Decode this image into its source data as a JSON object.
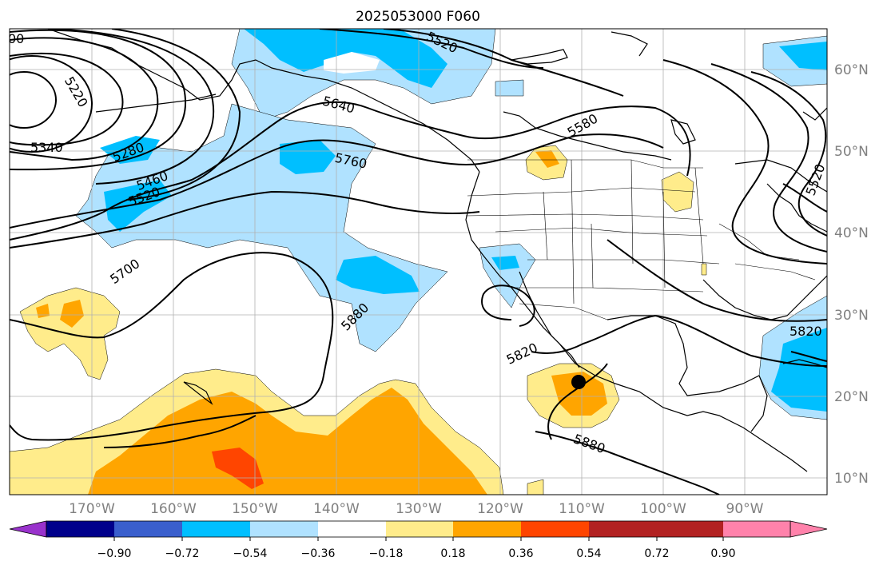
{
  "title": "2025053000 F060",
  "map": {
    "lon_range": [
      -180,
      -80
    ],
    "lat_range": [
      8,
      65
    ],
    "lat_ticks": [
      "10°N",
      "20°N",
      "30°N",
      "40°N",
      "50°N",
      "60°N"
    ],
    "lon_ticks": [
      "170°W",
      "160°W",
      "150°W",
      "140°W",
      "130°W",
      "120°W",
      "110°W",
      "100°W",
      "90°W"
    ],
    "grid": true,
    "marker": {
      "lon": -110,
      "lat": 22
    }
  },
  "contours": {
    "labels": [
      "00",
      "5220",
      "5340",
      "5280",
      "5460",
      "5520",
      "5700",
      "5880",
      "5640",
      "5760",
      "5520",
      "5580",
      "5820",
      "5880",
      "5820",
      "5520"
    ]
  },
  "colorbar": {
    "colors": [
      "#9932cc",
      "#00008b",
      "#3a5fcd",
      "#00bfff",
      "#b0e2ff",
      "#ffffff",
      "#ffec8b",
      "#ffa500",
      "#ff4500",
      "#b22222",
      "#ff82ab"
    ],
    "tick_labels": [
      "−0.90",
      "−0.72",
      "−0.54",
      "−0.36",
      "−0.18",
      "0.18",
      "0.36",
      "0.54",
      "0.72",
      "0.90"
    ]
  }
}
